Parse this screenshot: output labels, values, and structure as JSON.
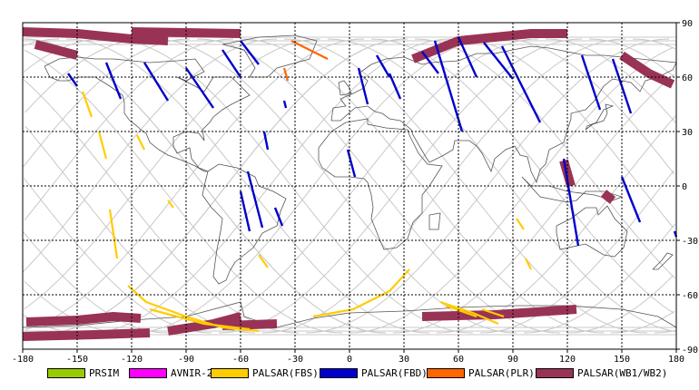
{
  "map": {
    "x_ticks": [
      "-180",
      "-150",
      "-120",
      "-90",
      "-60",
      "-30",
      "0",
      "30",
      "60",
      "90",
      "120",
      "150",
      "180"
    ],
    "y_ticks": [
      "90",
      "60",
      "30",
      "0",
      "-30",
      "-60",
      "-90"
    ],
    "lon_range": [
      -180,
      180
    ],
    "lat_range": [
      -90,
      90
    ],
    "grid": "dashed 30-degree graticule",
    "colors": {
      "frame": "#000000",
      "grid": "#000000",
      "orbit_track": "#c8c8c8",
      "coastline": "#555555"
    }
  },
  "legend": {
    "items": [
      {
        "label": "PRSIM",
        "color": "#99cc00"
      },
      {
        "label": "AVNIR-2",
        "color": "#ff00ff"
      },
      {
        "label": "PALSAR(FBS)",
        "color": "#ffcc00"
      },
      {
        "label": "PALSAR(FBD)",
        "color": "#0000cc"
      },
      {
        "label": "PALSAR(PLR)",
        "color": "#ff6600"
      },
      {
        "label": "PALSAR(WB1/WB2)",
        "color": "#993355"
      }
    ]
  },
  "swaths": {
    "fbd": [
      [
        [
          -155,
          62
        ],
        [
          -150,
          55
        ]
      ],
      [
        [
          -134,
          68
        ],
        [
          -126,
          48
        ]
      ],
      [
        [
          -113,
          68
        ],
        [
          -100,
          47
        ]
      ],
      [
        [
          -90,
          65
        ],
        [
          -75,
          43
        ]
      ],
      [
        [
          -70,
          75
        ],
        [
          -60,
          60
        ]
      ],
      [
        [
          -60,
          80
        ],
        [
          -50,
          67
        ]
      ],
      [
        [
          -36,
          47
        ],
        [
          -35,
          43
        ]
      ],
      [
        [
          -47,
          30
        ],
        [
          -45,
          20
        ]
      ],
      [
        [
          -56,
          8
        ],
        [
          -48,
          -23
        ]
      ],
      [
        [
          -60,
          -3
        ],
        [
          -55,
          -25
        ]
      ],
      [
        [
          -41,
          -12
        ],
        [
          -37,
          -22
        ]
      ],
      [
        [
          -1,
          20
        ],
        [
          3,
          5
        ]
      ],
      [
        [
          5,
          65
        ],
        [
          10,
          45
        ]
      ],
      [
        [
          15,
          72
        ],
        [
          22,
          60
        ]
      ],
      [
        [
          22,
          62
        ],
        [
          28,
          48
        ]
      ],
      [
        [
          40,
          74
        ],
        [
          49,
          62
        ]
      ],
      [
        [
          47,
          80
        ],
        [
          62,
          30
        ]
      ],
      [
        [
          60,
          82
        ],
        [
          70,
          60
        ]
      ],
      [
        [
          74,
          79
        ],
        [
          90,
          59
        ]
      ],
      [
        [
          84,
          77
        ],
        [
          105,
          35
        ]
      ],
      [
        [
          118,
          15
        ],
        [
          126,
          -33
        ]
      ],
      [
        [
          128,
          72
        ],
        [
          138,
          42
        ]
      ],
      [
        [
          145,
          70
        ],
        [
          155,
          40
        ]
      ],
      [
        [
          150,
          5
        ],
        [
          160,
          -20
        ]
      ],
      [
        [
          179,
          -25
        ],
        [
          180,
          -28
        ]
      ]
    ],
    "fbs": [
      [
        [
          -147,
          52
        ],
        [
          -142,
          38
        ]
      ],
      [
        [
          -138,
          30
        ],
        [
          -134,
          15
        ]
      ],
      [
        [
          -117,
          28
        ],
        [
          -113,
          20
        ]
      ],
      [
        [
          -100,
          -8
        ],
        [
          -97,
          -12
        ]
      ],
      [
        [
          -132,
          -13
        ],
        [
          -128,
          -40
        ]
      ],
      [
        [
          -122,
          -55
        ],
        [
          -112,
          -64
        ],
        [
          -90,
          -72
        ],
        [
          -70,
          -78
        ],
        [
          -50,
          -80
        ]
      ],
      [
        [
          -110,
          -68
        ],
        [
          -80,
          -76
        ],
        [
          -55,
          -79
        ]
      ],
      [
        [
          -50,
          -38
        ],
        [
          -45,
          -45
        ]
      ],
      [
        [
          -20,
          -72
        ],
        [
          2,
          -68
        ],
        [
          22,
          -58
        ],
        [
          33,
          -46
        ]
      ],
      [
        [
          50,
          -64
        ],
        [
          68,
          -70
        ],
        [
          82,
          -76
        ]
      ],
      [
        [
          53,
          -66
        ],
        [
          70,
          -72
        ]
      ],
      [
        [
          73,
          -68
        ],
        [
          85,
          -72
        ]
      ],
      [
        [
          92,
          -18
        ],
        [
          96,
          -24
        ]
      ],
      [
        [
          97,
          -40
        ],
        [
          100,
          -46
        ]
      ]
    ],
    "plr": [
      [
        [
          -32,
          80
        ],
        [
          -22,
          75
        ],
        [
          -12,
          70
        ]
      ],
      [
        [
          -36,
          65
        ],
        [
          -34,
          58
        ]
      ]
    ],
    "wb": [
      [
        [
          -180,
          85
        ],
        [
          -150,
          84
        ],
        [
          -120,
          81
        ],
        [
          -100,
          80
        ]
      ],
      [
        [
          -173,
          78
        ],
        [
          -150,
          72
        ]
      ],
      [
        [
          -178,
          -75
        ],
        [
          -150,
          -74
        ],
        [
          -130,
          -72
        ],
        [
          -115,
          -73
        ]
      ],
      [
        [
          -100,
          -80
        ],
        [
          -75,
          -76
        ],
        [
          -60,
          -72
        ]
      ],
      [
        [
          -180,
          -83
        ],
        [
          -140,
          -82
        ],
        [
          -110,
          -81
        ]
      ],
      [
        [
          35,
          70
        ],
        [
          60,
          80
        ],
        [
          100,
          84
        ],
        [
          120,
          84
        ]
      ],
      [
        [
          118,
          14
        ],
        [
          122,
          0
        ]
      ],
      [
        [
          140,
          -4
        ],
        [
          145,
          -8
        ]
      ],
      [
        [
          150,
          72
        ],
        [
          165,
          62
        ],
        [
          178,
          56
        ]
      ],
      [
        [
          40,
          -72
        ],
        [
          80,
          -71
        ],
        [
          125,
          -68
        ]
      ],
      [
        [
          -120,
          85
        ],
        [
          -60,
          84
        ]
      ],
      [
        [
          -70,
          -77
        ],
        [
          -40,
          -76
        ]
      ]
    ]
  }
}
